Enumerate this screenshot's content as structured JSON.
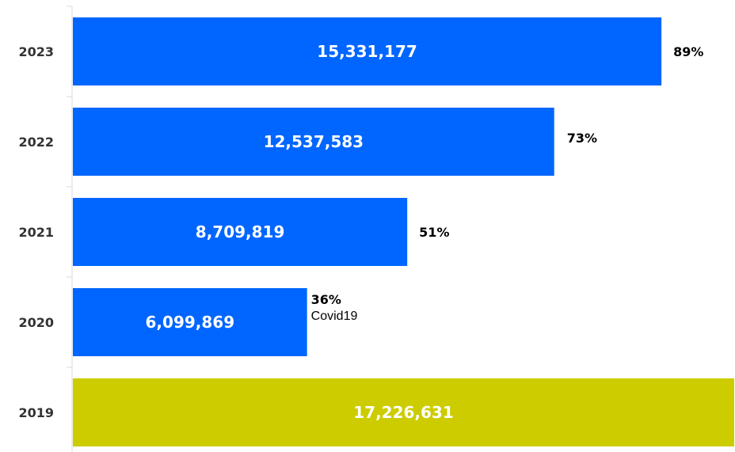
{
  "chart_data": {
    "type": "bar",
    "orientation": "horizontal",
    "title": "",
    "xlabel": "",
    "ylabel": "",
    "grid": false,
    "categories": [
      "2023",
      "2022",
      "2021",
      "2020",
      "2019"
    ],
    "values": [
      15331177,
      12537583,
      8709819,
      6099869,
      17226631
    ],
    "value_labels": [
      "15,331,177",
      "12,537,583",
      "8,709,819",
      "6,099,869",
      "17,226,631"
    ],
    "percent_labels": [
      "89%",
      "73%",
      "51%",
      "36%",
      ""
    ],
    "annotations": [
      "",
      "",
      "",
      "Covid19",
      ""
    ],
    "colors": [
      "#0066ff",
      "#0066ff",
      "#0066ff",
      "#0066ff",
      "#cccc00"
    ],
    "xlim": [
      0,
      17226631
    ]
  }
}
